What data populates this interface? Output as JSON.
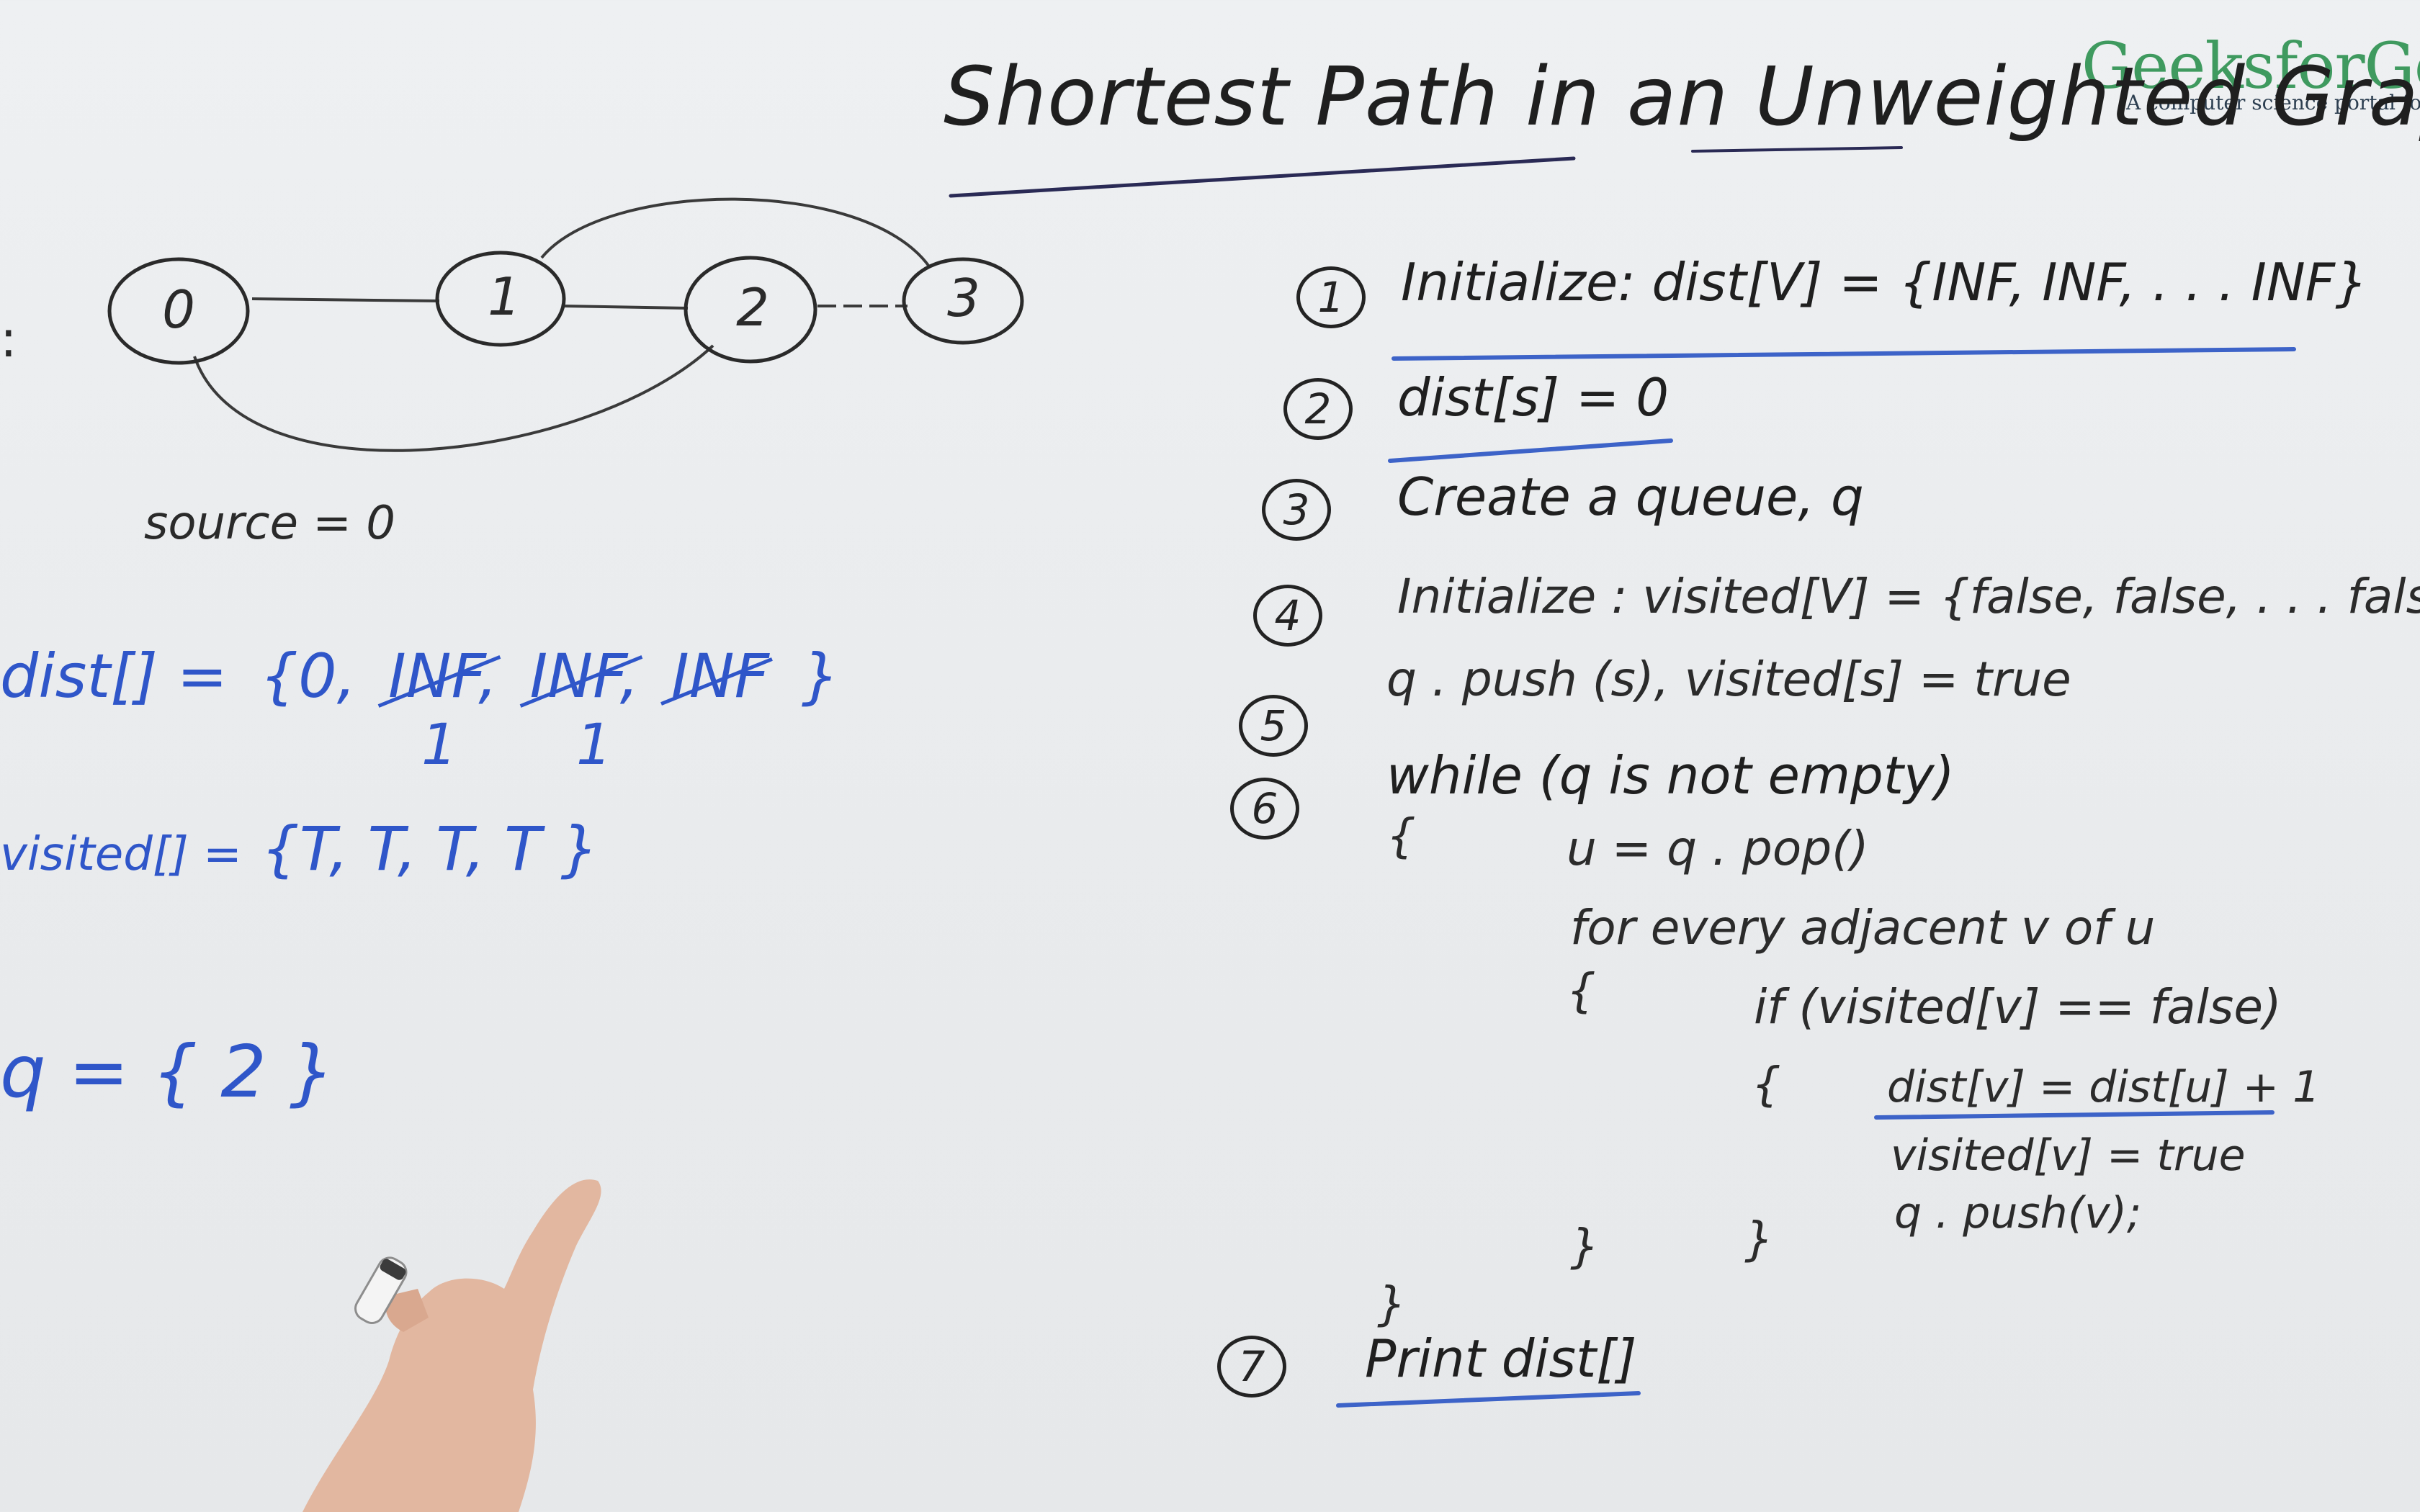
{
  "logo": {
    "name": "GeeksforGee",
    "tagline": "A computer science portal for ge"
  },
  "title": "Shortest Path in an Unweighted Graph",
  "graph": {
    "nodes": [
      "0",
      "1",
      "2",
      "3"
    ],
    "edges": [
      [
        "0",
        "1"
      ],
      [
        "1",
        "2"
      ],
      [
        "2",
        "3"
      ],
      [
        "1",
        "3"
      ],
      [
        "0",
        "2"
      ]
    ],
    "source_label": "source = 0"
  },
  "state": {
    "side_colon": ":",
    "dist_label": "dist[] =",
    "dist_open": "{0,",
    "dist_inf_1": "INF,",
    "dist_inf_2": "INF,",
    "dist_inf_3": "INF",
    "dist_close": "}",
    "dist_update_1": "1",
    "dist_update_2": "1",
    "visited_label": "visited[] =",
    "visited_values": "{T,  T,  T,  T }",
    "queue_text": "q = { 2 }"
  },
  "algorithm": {
    "steps": [
      {
        "num": "1",
        "text": "Initialize: dist[V] = {INF, INF, . . . INF}"
      },
      {
        "num": "2",
        "text": "dist[s] = 0"
      },
      {
        "num": "3",
        "text": "Create a queue,  q"
      },
      {
        "num": "4",
        "text": "Initialize :  visited[V] = {false, false, . . . fals"
      },
      {
        "num": "5",
        "text": "q . push (s),    visited[s] = true"
      },
      {
        "num": "6",
        "text": "while (q is not empty)"
      },
      {
        "num": "7",
        "text": "Print dist[]"
      }
    ],
    "body": {
      "open_brace": "{",
      "pop_line": "u = q . pop()",
      "for_line": "for every adjacent v of u",
      "for_brace": "{",
      "if_line": "if (visited[v] == false)",
      "if_brace": "{",
      "assign_dist": "dist[v] = dist[u] + 1",
      "assign_visited": "visited[v] = true",
      "push_line": "q . push(v);",
      "close_if": "}",
      "close_for": "}",
      "close_while": "}"
    }
  },
  "colors": {
    "board": "#eceef0",
    "ink_black": "#1f1f1f",
    "ink_blue": "#2f56c9",
    "logo_green": "#3f9a5f"
  }
}
